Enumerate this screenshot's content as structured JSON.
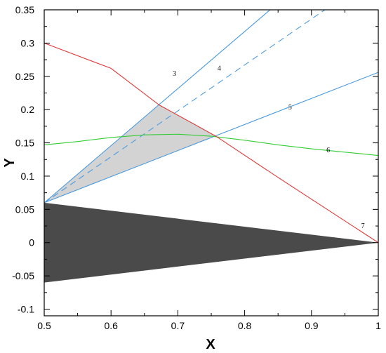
{
  "chart_data": {
    "type": "line",
    "title": "",
    "xlabel": "X",
    "ylabel": "Y",
    "xlim": [
      0.5,
      1.0
    ],
    "ylim": [
      -0.11,
      0.35
    ],
    "grid": false,
    "legend": "none",
    "x_ticks": [
      {
        "value": 0.5,
        "label": "0.5"
      },
      {
        "value": 0.6,
        "label": "0.6"
      },
      {
        "value": 0.7,
        "label": "0.7"
      },
      {
        "value": 0.8,
        "label": "0.8"
      },
      {
        "value": 0.9,
        "label": "0.9"
      },
      {
        "value": 1.0,
        "label": "1"
      }
    ],
    "y_ticks": [
      {
        "value": 0.35,
        "label": "0.35"
      },
      {
        "value": 0.3,
        "label": "0.3"
      },
      {
        "value": 0.25,
        "label": "0.25"
      },
      {
        "value": 0.2,
        "label": "0.2"
      },
      {
        "value": 0.15,
        "label": "0.15"
      },
      {
        "value": 0.1,
        "label": "0.1"
      },
      {
        "value": 0.05,
        "label": "0.05"
      },
      {
        "value": 0,
        "label": "0"
      },
      {
        "value": -0.05,
        "label": "-0.05"
      },
      {
        "value": -0.1,
        "label": "-0.1"
      }
    ],
    "filled_regions": [
      {
        "name": "wedge",
        "color": "#4a4a4a",
        "points": [
          [
            0.5,
            0.06
          ],
          [
            1.0,
            0.0
          ],
          [
            0.5,
            -0.06
          ]
        ]
      },
      {
        "name": "shaded-triangle",
        "color": "#d3d3d3",
        "points": [
          [
            0.5,
            0.06
          ],
          [
            0.672,
            0.207
          ],
          [
            0.757,
            0.16
          ]
        ]
      }
    ],
    "series": [
      {
        "label": "3",
        "color": "#4a9be0",
        "dash": "solid",
        "points": [
          [
            0.5,
            0.06
          ],
          [
            0.838,
            0.35
          ]
        ],
        "label_at": [
          0.695,
          0.251
        ]
      },
      {
        "label": "4",
        "color": "#4a9be0",
        "dash": "dashed",
        "points": [
          [
            0.5,
            0.06
          ],
          [
            0.92,
            0.35
          ]
        ],
        "label_at": [
          0.762,
          0.259
        ]
      },
      {
        "label": "5",
        "color": "#4a9be0",
        "dash": "solid",
        "points": [
          [
            0.5,
            0.06
          ],
          [
            1.0,
            0.256
          ]
        ],
        "label_at": [
          0.868,
          0.2
        ]
      },
      {
        "label": "6",
        "color": "#33cc33",
        "dash": "solid",
        "points": [
          [
            0.5,
            0.147
          ],
          [
            0.55,
            0.152
          ],
          [
            0.6,
            0.158
          ],
          [
            0.65,
            0.162
          ],
          [
            0.7,
            0.163
          ],
          [
            0.75,
            0.16
          ],
          [
            0.8,
            0.154
          ],
          [
            0.85,
            0.147
          ],
          [
            0.9,
            0.141
          ],
          [
            0.95,
            0.136
          ],
          [
            1.0,
            0.131
          ]
        ],
        "label_at": [
          0.925,
          0.136
        ]
      },
      {
        "label": "7",
        "color": "#e03a3a",
        "dash": "solid",
        "points": [
          [
            0.5,
            0.3
          ],
          [
            0.6,
            0.262
          ],
          [
            0.672,
            0.207
          ],
          [
            0.757,
            0.16
          ],
          [
            0.85,
            0.098
          ],
          [
            1.0,
            0.0
          ]
        ],
        "label_at": [
          0.977,
          0.022
        ]
      }
    ]
  }
}
